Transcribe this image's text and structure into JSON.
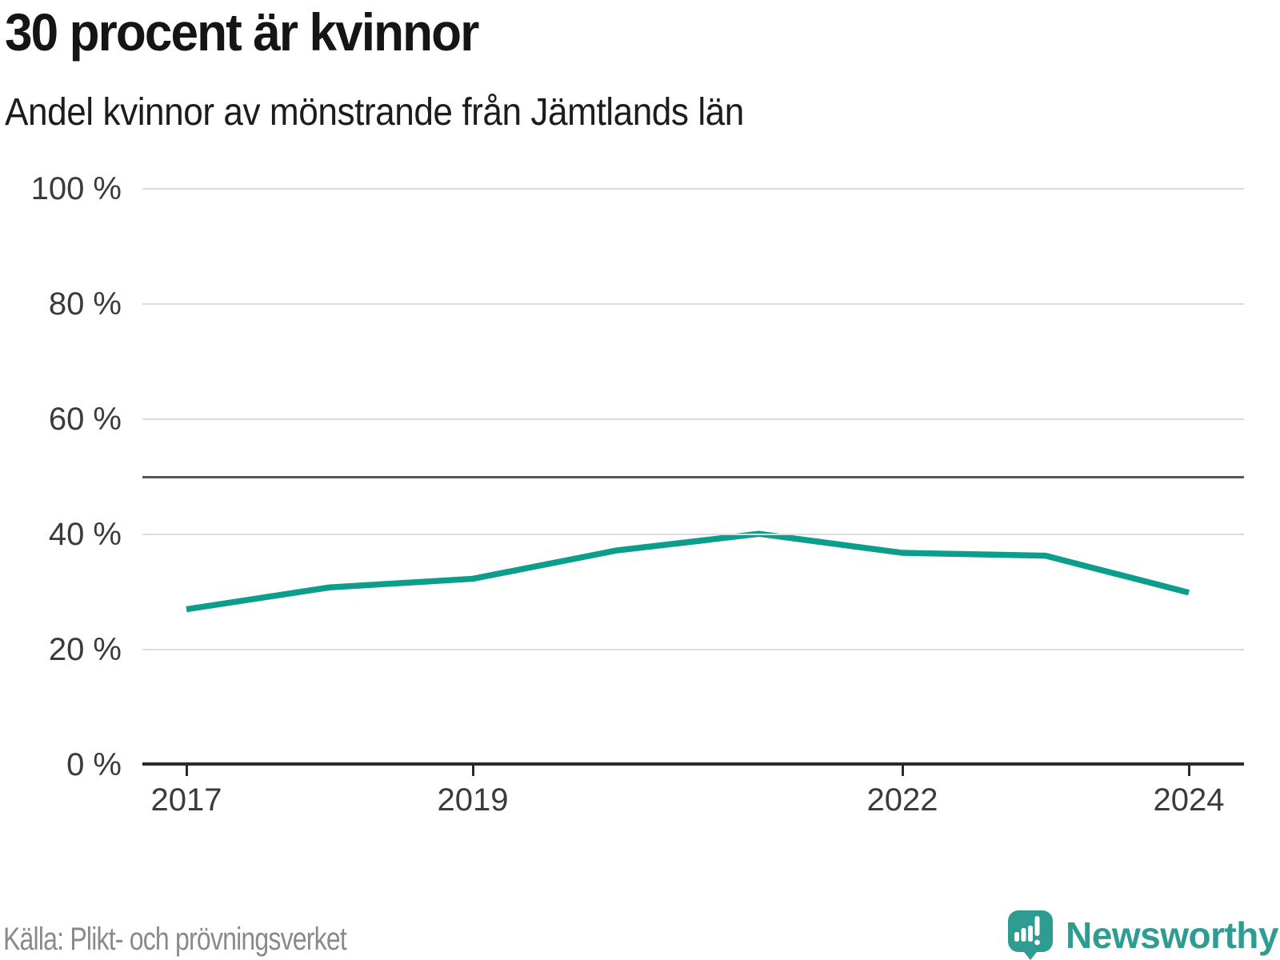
{
  "header": {
    "title": "30 procent är kvinnor",
    "subtitle": "Andel kvinnor av mönstrande från Jämtlands län"
  },
  "footer": {
    "source": "Källa: Plikt- och prövningsverket",
    "brand": "Newsworthy",
    "brand_color": "#2f9c92",
    "logo_icon": "newsworthy-speech-bubble-bar-chart-icon"
  },
  "chart_data": {
    "type": "line",
    "title": "30 procent är kvinnor",
    "subtitle": "Andel kvinnor av mönstrande från Jämtlands län",
    "x": [
      2017,
      2018,
      2019,
      2020,
      2021,
      2022,
      2023,
      2024
    ],
    "series": [
      {
        "name": "Andel kvinnor av mönstrande",
        "color": "#0d9d8d",
        "values": [
          27.0,
          30.8,
          32.3,
          37.2,
          40.1,
          36.8,
          36.3,
          29.9
        ]
      }
    ],
    "unit": "%",
    "ylim": [
      0,
      100
    ],
    "yticks": [
      0,
      20,
      40,
      60,
      80,
      100
    ],
    "ytick_label_format": "{v} %",
    "xticks": [
      2017,
      2019,
      2022,
      2024
    ],
    "reference_line": {
      "value": 50,
      "color": "#55565a"
    },
    "grid": "horizontal",
    "gridline_color": "#dcdcdc",
    "axis_color": "#2b2b2b",
    "legend": "none"
  }
}
